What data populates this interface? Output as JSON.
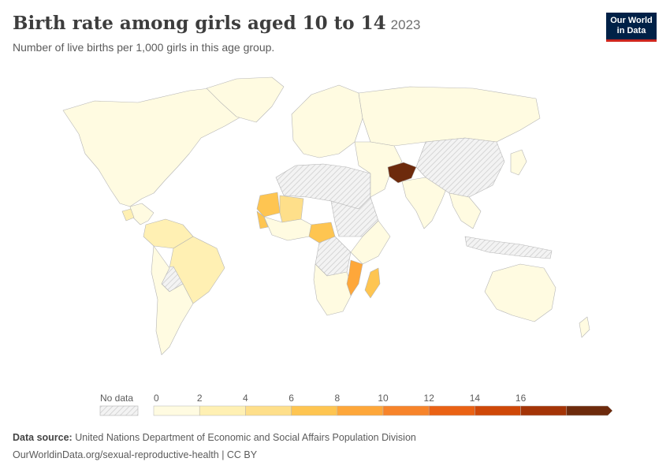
{
  "header": {
    "title": "Birth rate among girls aged 10 to 14",
    "year": "2023",
    "subtitle": "Number of live births per 1,000 girls in this age group.",
    "logo_line1": "Our World",
    "logo_line2": "in Data"
  },
  "colors": {
    "bin0": "#fffbe1",
    "bin1": "#fff0b3",
    "bin2": "#fedf8a",
    "bin3": "#fec551",
    "bin4": "#fea73a",
    "bin5": "#f7842a",
    "bin6": "#ea6214",
    "bin7": "#cf4808",
    "bin8": "#a43406",
    "bin9": "#6d2a0c",
    "nodata": "#e8e8e8",
    "border": "#b5b5b5"
  },
  "legend": {
    "no_data_label": "No data",
    "ticks": [
      "0",
      "2",
      "4",
      "6",
      "8",
      "10",
      "12",
      "14",
      "16"
    ]
  },
  "map_data": {
    "type": "choropleth",
    "metric": "Birth rate among girls aged 10 to 14",
    "year": "2023",
    "bins": [
      0,
      2,
      4,
      6,
      8,
      10,
      12,
      14,
      16,
      18
    ],
    "regions": [
      {
        "name": "Afghanistan",
        "bin": 9
      },
      {
        "name": "Mauritania",
        "bin": 3
      },
      {
        "name": "Mali",
        "bin": 2
      },
      {
        "name": "Nigeria",
        "bin": 3
      },
      {
        "name": "Mozambique",
        "bin": 4
      },
      {
        "name": "Madagascar",
        "bin": 3
      },
      {
        "name": "Guatemala",
        "bin": 2
      },
      {
        "name": "Brazil",
        "bin": 1
      },
      {
        "name": "Colombia",
        "bin": 1
      },
      {
        "name": "Venezuela",
        "bin": 1
      },
      {
        "name": "China",
        "bin": "no data"
      },
      {
        "name": "Algeria",
        "bin": "no data"
      },
      {
        "name": "Libya",
        "bin": "no data"
      },
      {
        "name": "Sudan",
        "bin": "no data"
      },
      {
        "name": "DR Congo",
        "bin": "no data"
      },
      {
        "name": "Indonesia",
        "bin": "no data"
      },
      {
        "name": "Bolivia",
        "bin": "no data"
      }
    ]
  },
  "footer": {
    "source_label": "Data source:",
    "source_text": "United Nations Department of Economic and Social Affairs Population Division",
    "url": "OurWorldinData.org/sexual-reproductive-health",
    "license": "| CC BY"
  }
}
